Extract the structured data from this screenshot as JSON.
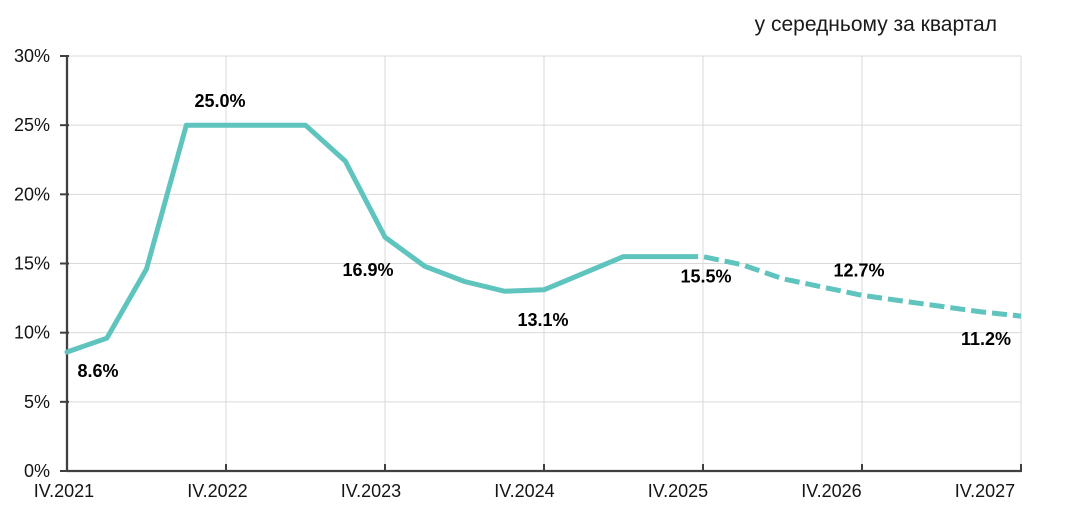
{
  "title": "у середньому за квартал",
  "colors": {
    "line": "#5FC4BD",
    "axis": "#404040",
    "gridline": "#D9D9D9",
    "tick_text": "#141414",
    "label_text": "#000000"
  },
  "chart_data": {
    "type": "line",
    "title": "у середньому за квартал",
    "unit": "%",
    "grid": true,
    "legend": "none",
    "ylim": [
      0,
      30
    ],
    "y_tick_step": 5,
    "x": [
      "IV.2021",
      "I.2022",
      "II.2022",
      "III.2022",
      "IV.2022",
      "I.2023",
      "II.2023",
      "III.2023",
      "IV.2023",
      "I.2024",
      "II.2024",
      "III.2024",
      "IV.2024",
      "I.2025",
      "II.2025",
      "III.2025",
      "IV.2025",
      "I.2026",
      "II.2026",
      "III.2026",
      "IV.2026",
      "I.2027",
      "II.2027",
      "III.2027",
      "IV.2027"
    ],
    "series": [
      {
        "name": "actual",
        "style": "solid",
        "from": "IV.2021",
        "to": "III.2025",
        "values": [
          8.6,
          9.6,
          14.6,
          25.0,
          25.0,
          25.0,
          25.0,
          22.4,
          16.9,
          14.8,
          13.7,
          13.0,
          13.1,
          14.3,
          15.5,
          15.5
        ]
      },
      {
        "name": "forecast",
        "style": "dashed",
        "from": "IV.2025",
        "to": "IV.2027",
        "values": [
          15.5,
          14.9,
          13.9,
          13.3,
          12.7,
          12.3,
          11.9,
          11.5,
          11.2
        ]
      }
    ],
    "point_labels": [
      {
        "quarter": "IV.2021",
        "text": "8.6%",
        "placement": "below-right"
      },
      {
        "quarter": "IV.2022",
        "text": "25.0%",
        "placement": "above"
      },
      {
        "quarter": "IV.2023",
        "text": "16.9%",
        "placement": "below-left"
      },
      {
        "quarter": "IV.2024",
        "text": "13.1%",
        "placement": "below"
      },
      {
        "quarter": "IV.2025",
        "text": "15.5%",
        "placement": "below"
      },
      {
        "quarter": "IV.2026",
        "text": "12.7%",
        "placement": "above"
      },
      {
        "quarter": "IV.2027",
        "text": "11.2%",
        "placement": "below-left"
      }
    ],
    "x_axis_tick_labels": [
      "IV.2021",
      "IV.2022",
      "IV.2023",
      "IV.2024",
      "IV.2025",
      "IV.2026",
      "IV.2027"
    ],
    "y_axis_tick_labels": [
      "0%",
      "5%",
      "10%",
      "15%",
      "20%",
      "25%",
      "30%"
    ]
  }
}
